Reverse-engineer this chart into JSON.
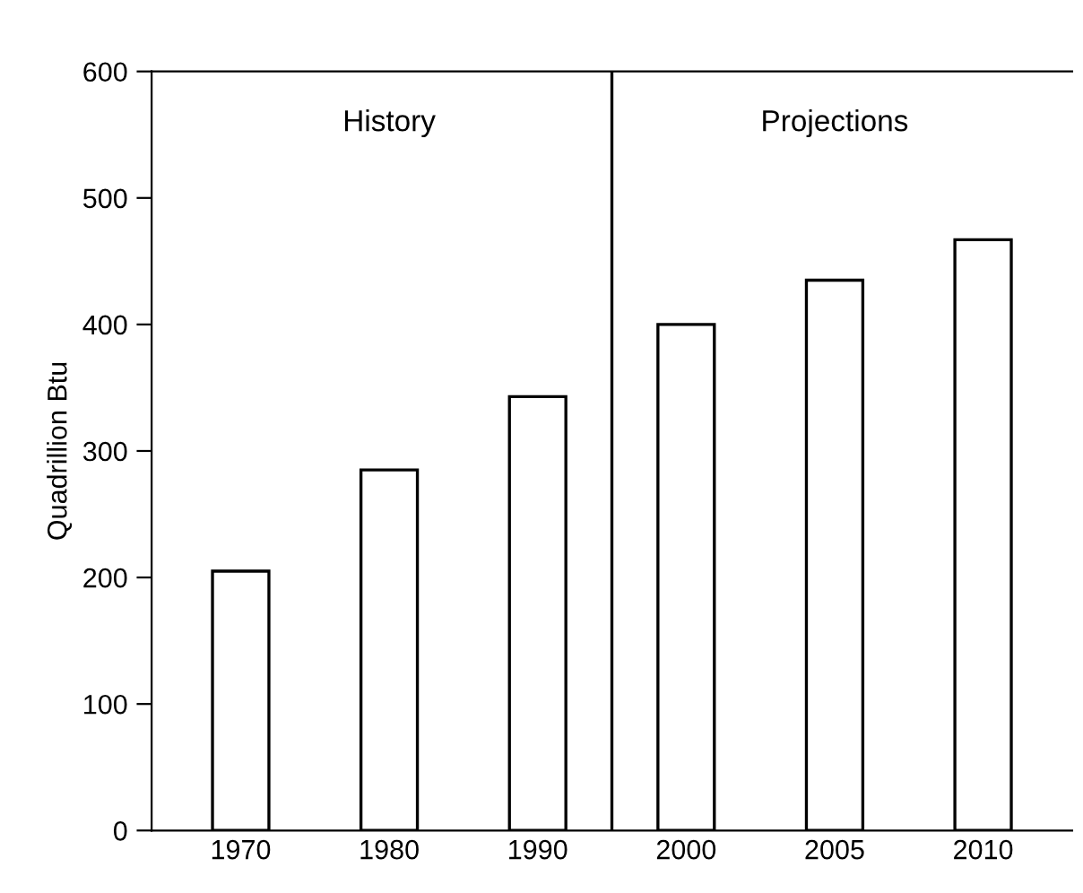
{
  "chart_data": {
    "type": "bar",
    "ylabel": "Quadrillion Btu",
    "categories": [
      "1970",
      "1980",
      "1990",
      "2000",
      "2005",
      "2010"
    ],
    "values": [
      205,
      285,
      343,
      400,
      435,
      467
    ],
    "color": "#ffffff",
    "ylim": [
      0,
      600
    ],
    "yticks": [
      0,
      100,
      200,
      300,
      400,
      500,
      600
    ],
    "grid": false,
    "annotations": [
      "History",
      "Projections"
    ]
  }
}
